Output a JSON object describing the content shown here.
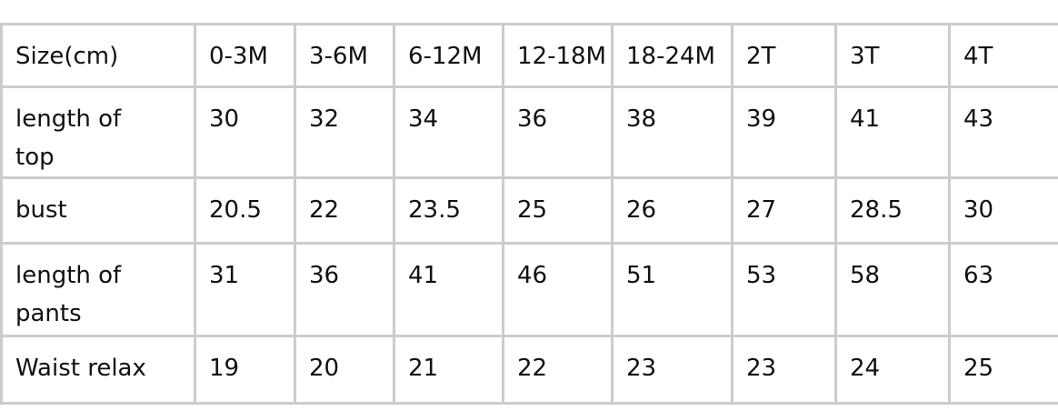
{
  "table": {
    "header": [
      "Size(cm)",
      "0-3M",
      "3-6M",
      "6-12M",
      "12-18M",
      "18-24M",
      "2T",
      "3T",
      "4T"
    ],
    "rows": [
      [
        "length of top",
        "30",
        "32",
        "34",
        "36",
        "38",
        "39",
        "41",
        "43"
      ],
      [
        "bust",
        "20.5",
        "22",
        "23.5",
        "25",
        "26",
        "27",
        "28.5",
        "30"
      ],
      [
        "length of pants",
        "31",
        "36",
        "41",
        "46",
        "51",
        "53",
        "58",
        "63"
      ],
      [
        "Waist relax",
        "19",
        "20",
        "21",
        "22",
        "23",
        "23",
        "24",
        "25"
      ]
    ],
    "border_color": "#cccccc"
  }
}
